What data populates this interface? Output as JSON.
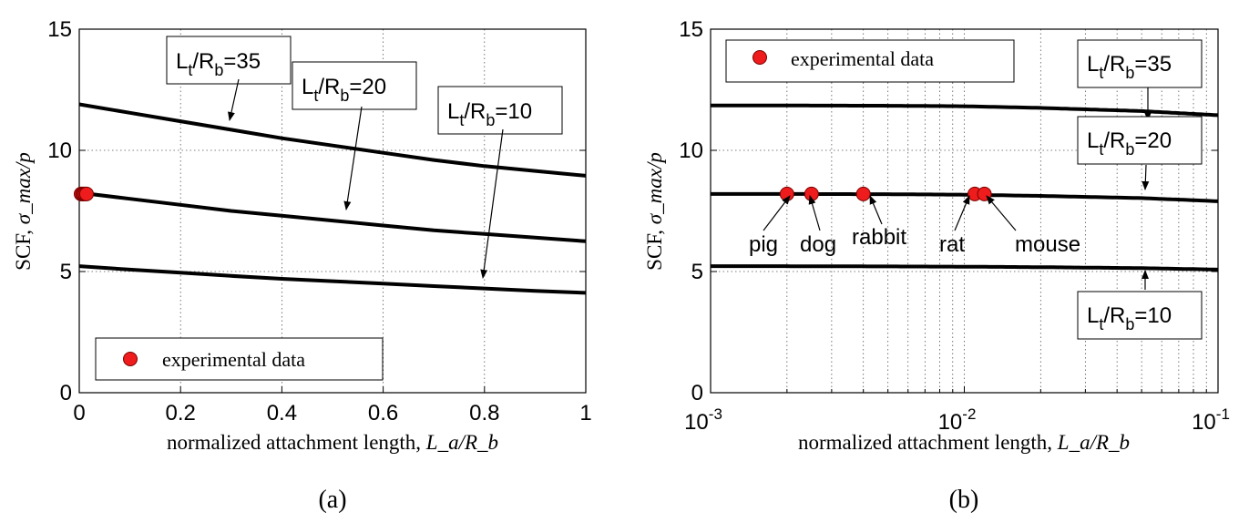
{
  "chart_data": [
    {
      "panel": "(a)",
      "type": "line",
      "xlabel": "normalized attachment length,",
      "xlabel_math": "L_a/R_b",
      "ylabel": "SCF,",
      "ylabel_math": "σ_max/p",
      "xscale": "linear",
      "xlim": [
        0,
        1
      ],
      "ylim": [
        0,
        15
      ],
      "xticks": [
        0,
        0.2,
        0.4,
        0.6,
        0.8,
        1
      ],
      "xtick_labels": [
        "0",
        "0.2",
        "0.4",
        "0.6",
        "0.8",
        "1"
      ],
      "yticks": [
        0,
        5,
        10,
        15
      ],
      "ytick_labels": [
        "0",
        "5",
        "10",
        "15"
      ],
      "grid": true,
      "legend": {
        "position": "bottom-left",
        "entries": [
          "experimental data"
        ]
      },
      "series": [
        {
          "label": "Lt/Rb=35",
          "label_main": "L",
          "label_sub1": "t",
          "label_mid": "/R",
          "label_sub2": "b",
          "label_val": "=35",
          "x": [
            0,
            0.1,
            0.2,
            0.3,
            0.4,
            0.5,
            0.6,
            0.7,
            0.8,
            0.9,
            1.0
          ],
          "y": [
            11.9,
            11.55,
            11.2,
            10.85,
            10.5,
            10.2,
            9.9,
            9.6,
            9.35,
            9.15,
            8.95
          ]
        },
        {
          "label": "Lt/Rb=20",
          "label_main": "L",
          "label_sub1": "t",
          "label_mid": "/R",
          "label_sub2": "b",
          "label_val": "=20",
          "x": [
            0,
            0.1,
            0.2,
            0.3,
            0.4,
            0.5,
            0.6,
            0.7,
            0.8,
            0.9,
            1.0
          ],
          "y": [
            8.25,
            8.0,
            7.75,
            7.5,
            7.3,
            7.1,
            6.9,
            6.7,
            6.55,
            6.4,
            6.25
          ]
        },
        {
          "label": "Lt/Rb=10",
          "label_main": "L",
          "label_sub1": "t",
          "label_mid": "/R",
          "label_sub2": "b",
          "label_val": "=10",
          "x": [
            0,
            0.1,
            0.2,
            0.3,
            0.4,
            0.5,
            0.6,
            0.7,
            0.8,
            0.9,
            1.0
          ],
          "y": [
            5.22,
            5.08,
            4.95,
            4.82,
            4.7,
            4.6,
            4.5,
            4.4,
            4.3,
            4.2,
            4.12
          ]
        }
      ],
      "experimental_points": {
        "x": [
          0.002,
          0.0025,
          0.004,
          0.011,
          0.012
        ],
        "y": [
          8.2,
          8.2,
          8.2,
          8.2,
          8.2
        ]
      }
    },
    {
      "panel": "(b)",
      "type": "line",
      "xlabel": "normalized attachment length,",
      "xlabel_math": "L_a/R_b",
      "ylabel": "SCF,",
      "ylabel_math": "σ_max/p",
      "xscale": "log",
      "xlim": [
        0.001,
        0.1
      ],
      "ylim": [
        0,
        15
      ],
      "xticks": [
        0.001,
        0.01,
        0.1
      ],
      "xtick_labels": [
        {
          "base": "10",
          "exp": "-3"
        },
        {
          "base": "10",
          "exp": "-2"
        },
        {
          "base": "10",
          "exp": "-1"
        }
      ],
      "yticks": [
        0,
        5,
        10,
        15
      ],
      "ytick_labels": [
        "0",
        "5",
        "10",
        "15"
      ],
      "grid": true,
      "legend": {
        "position": "top-left",
        "entries": [
          "experimental data"
        ]
      },
      "series": [
        {
          "label": "Lt/Rb=35",
          "label_main": "L",
          "label_sub1": "t",
          "label_mid": "/R",
          "label_sub2": "b",
          "label_val": "=35",
          "x": [
            0.001,
            0.002,
            0.005,
            0.01,
            0.02,
            0.05,
            0.1
          ],
          "y": [
            11.85,
            11.85,
            11.84,
            11.82,
            11.75,
            11.62,
            11.45
          ]
        },
        {
          "label": "Lt/Rb=20",
          "label_main": "L",
          "label_sub1": "t",
          "label_mid": "/R",
          "label_sub2": "b",
          "label_val": "=20",
          "x": [
            0.001,
            0.002,
            0.005,
            0.01,
            0.02,
            0.05,
            0.1
          ],
          "y": [
            8.2,
            8.2,
            8.19,
            8.17,
            8.12,
            8.03,
            7.9
          ]
        },
        {
          "label": "Lt/Rb=10",
          "label_main": "L",
          "label_sub1": "t",
          "label_mid": "/R",
          "label_sub2": "b",
          "label_val": "=10",
          "x": [
            0.001,
            0.002,
            0.005,
            0.01,
            0.02,
            0.05,
            0.1
          ],
          "y": [
            5.22,
            5.22,
            5.21,
            5.2,
            5.18,
            5.14,
            5.08
          ]
        }
      ],
      "experimental_points": [
        {
          "name": "pig",
          "x": 0.002,
          "y": 8.2
        },
        {
          "name": "dog",
          "x": 0.0025,
          "y": 8.2
        },
        {
          "name": "rabbit",
          "x": 0.004,
          "y": 8.2
        },
        {
          "name": "rat",
          "x": 0.011,
          "y": 8.2
        },
        {
          "name": "mouse",
          "x": 0.012,
          "y": 8.2
        }
      ]
    }
  ]
}
